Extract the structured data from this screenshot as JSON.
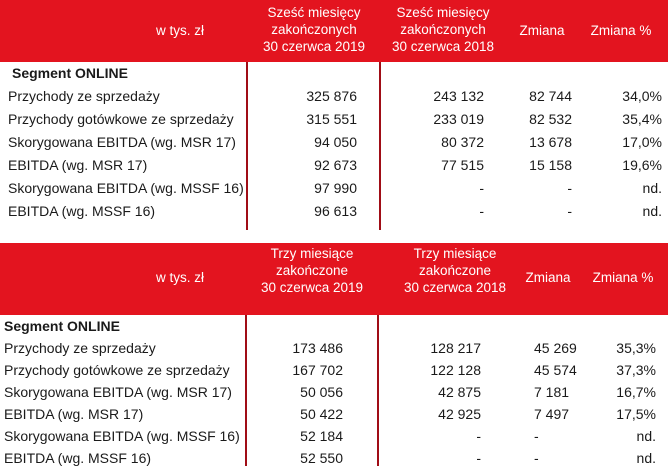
{
  "table1": {
    "headers": {
      "unit": "w tys. zł",
      "col1": [
        "Sześć miesięcy",
        "zakończonych",
        "30 czerwca 2019"
      ],
      "col2": [
        "Sześć miesięcy",
        "zakończonych",
        "30 czerwca 2018"
      ],
      "col3": "Zmiana",
      "col4": "Zmiana %"
    },
    "segment": "Segment ONLINE",
    "rows": [
      {
        "label": "Przychody ze sprzedaży",
        "v1": "325 876",
        "v2": "243 132",
        "v3": "82 744",
        "v4": "34,0%"
      },
      {
        "label": "Przychody gotówkowe ze sprzedaży",
        "v1": "315 551",
        "v2": "233 019",
        "v3": "82 532",
        "v4": "35,4%"
      },
      {
        "label": "Skorygowana EBITDA (wg. MSR 17)",
        "v1": "94 050",
        "v2": "80 372",
        "v3": "13 678",
        "v4": "17,0%"
      },
      {
        "label": "EBITDA (wg. MSR 17)",
        "v1": "92 673",
        "v2": "77 515",
        "v3": "15 158",
        "v4": "19,6%"
      },
      {
        "label": "Skorygowana EBITDA (wg. MSSF 16)",
        "v1": "97 990",
        "v2": "-",
        "v3": "-",
        "v4": "nd."
      },
      {
        "label": "EBITDA (wg. MSSF 16)",
        "v1": "96 613",
        "v2": "-",
        "v3": "-",
        "v4": "nd."
      }
    ]
  },
  "table2": {
    "headers": {
      "unit": "w tys. zł",
      "col1": [
        "Trzy miesiące",
        "zakończone",
        "30 czerwca 2019"
      ],
      "col2": [
        "Trzy miesiące",
        "zakończone",
        "30 czerwca 2018"
      ],
      "col3": "Zmiana",
      "col4": "Zmiana %"
    },
    "segment": "Segment ONLINE",
    "rows": [
      {
        "label": "Przychody ze sprzedaży",
        "v1": "173 486",
        "v2": "128 217",
        "v3": "45 269",
        "v4": "35,3%"
      },
      {
        "label": "Przychody gotówkowe ze sprzedaży",
        "v1": "167 702",
        "v2": "122 128",
        "v3": "45 574",
        "v4": "37,3%"
      },
      {
        "label": "Skorygowana EBITDA (wg. MSR 17)",
        "v1": "50 056",
        "v2": "42 875",
        "v3": "7 181",
        "v4": "16,7%"
      },
      {
        "label": "EBITDA (wg. MSR 17)",
        "v1": "50 422",
        "v2": "42 925",
        "v3": "7 497",
        "v4": "17,5%"
      },
      {
        "label": "Skorygowana EBITDA (wg. MSSF 16)",
        "v1": "52 184",
        "v2": "-",
        "v3": "-",
        "v4": "nd."
      },
      {
        "label": "EBITDA (wg. MSSF 16)",
        "v1": "52 550",
        "v2": "-",
        "v3": "-",
        "v4": "nd."
      }
    ]
  }
}
